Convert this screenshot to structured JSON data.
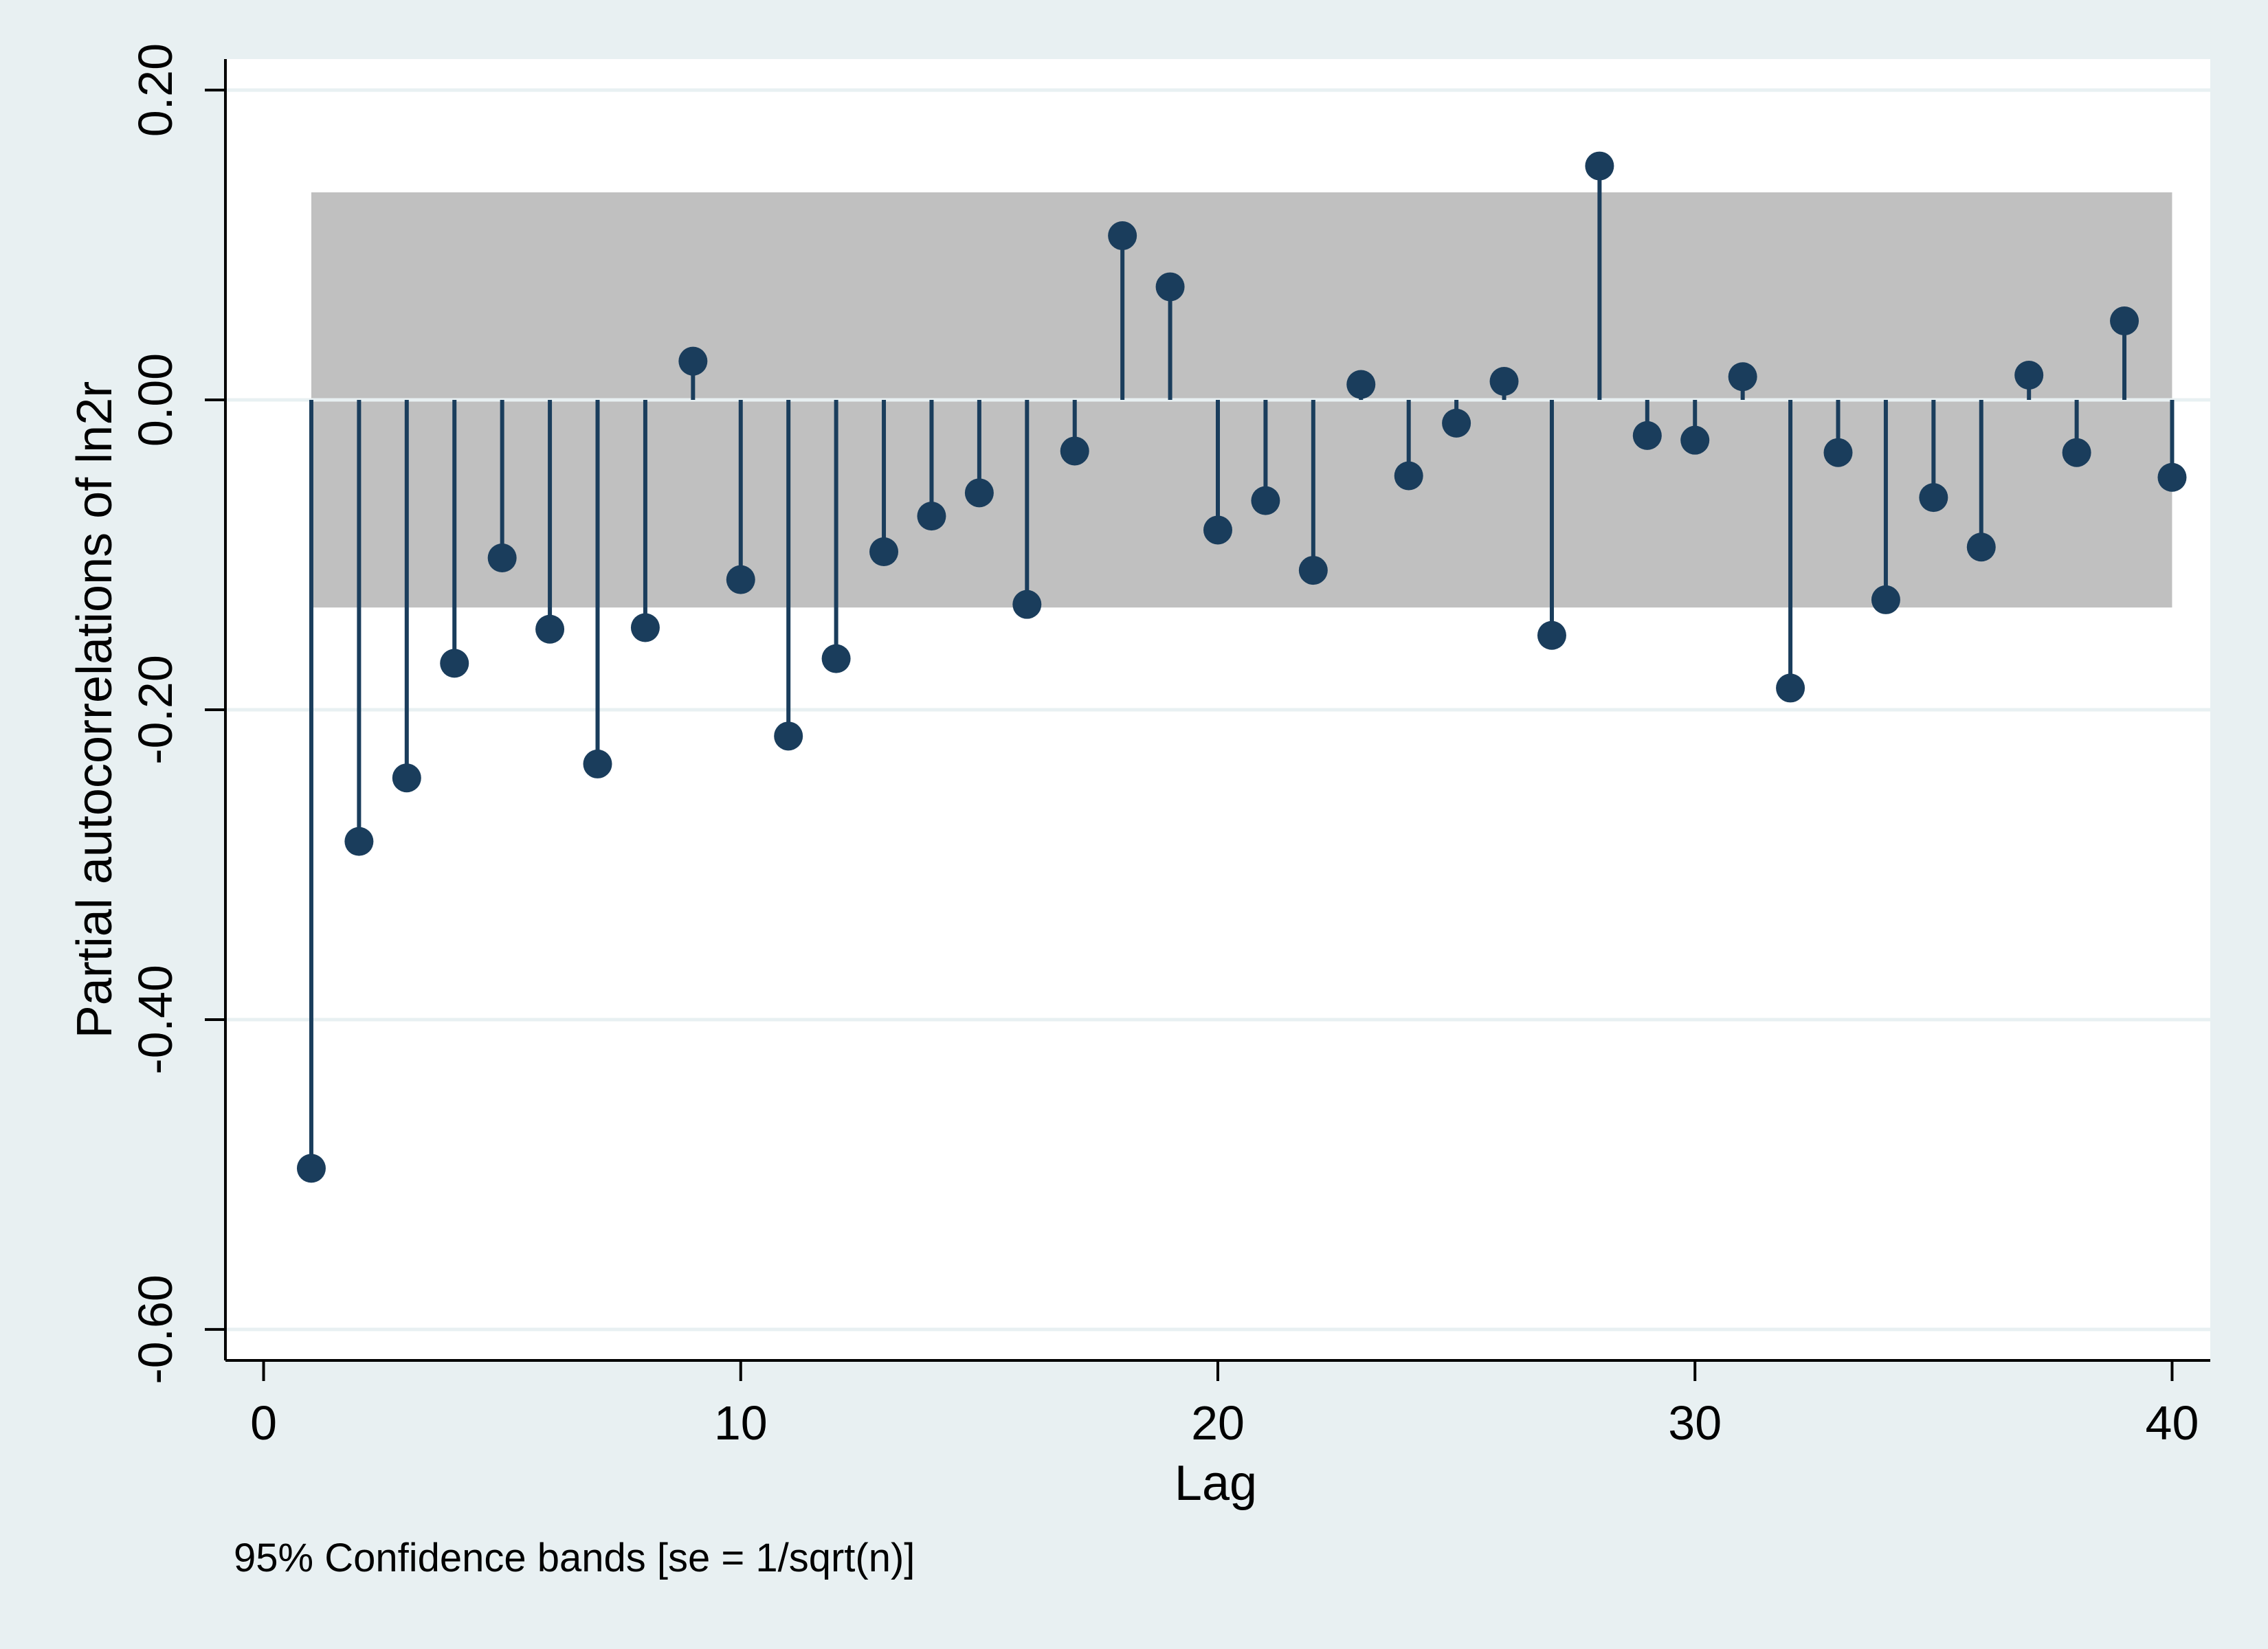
{
  "chart_data": {
    "type": "scatter",
    "style": "stem",
    "title": "",
    "xlabel": "Lag",
    "ylabel": "Partial autocorrelations of ln2r",
    "note": "95% Confidence bands [se = 1/sqrt(n)]",
    "xlim": [
      -0.8,
      40.8
    ],
    "ylim": [
      -0.62,
      0.22
    ],
    "x_ticks": [
      0,
      10,
      20,
      30,
      40
    ],
    "x_tick_labels": [
      "0",
      "10",
      "20",
      "30",
      "40"
    ],
    "y_ticks": [
      0.2,
      0.0,
      -0.2,
      -0.4,
      -0.6
    ],
    "y_tick_labels": [
      "0.20",
      "0.00",
      "-0.20",
      "-0.40",
      "-0.60"
    ],
    "grid": true,
    "confidence_band": {
      "lower": -0.134,
      "upper": 0.134,
      "from_lag": 1,
      "to_lag": 40
    },
    "series": [
      {
        "x": [
          1,
          2,
          3,
          4,
          5,
          6,
          7,
          8,
          9,
          10,
          11,
          12,
          13,
          14,
          15,
          16,
          17,
          18,
          19,
          20,
          21,
          22,
          23,
          24,
          25,
          26,
          27,
          28,
          29,
          30,
          31,
          32,
          33,
          34,
          35,
          36,
          37,
          38,
          39,
          40
        ],
        "values": [
          -0.496,
          -0.285,
          -0.244,
          -0.17,
          -0.102,
          -0.148,
          -0.235,
          -0.147,
          0.025,
          -0.116,
          -0.217,
          -0.167,
          -0.098,
          -0.075,
          -0.06,
          -0.132,
          -0.033,
          0.106,
          0.073,
          -0.084,
          -0.065,
          -0.11,
          0.01,
          -0.049,
          -0.015,
          0.012,
          -0.152,
          0.151,
          -0.023,
          -0.026,
          0.015,
          -0.186,
          -0.034,
          -0.129,
          -0.063,
          -0.095,
          0.016,
          -0.034,
          0.051,
          -0.05
        ]
      }
    ],
    "colors": {
      "background": "#e8f0f2",
      "plot_background": "#ffffff",
      "band": "#c0c0c0",
      "gridline": "#e8f0f2",
      "marker": "#1a3d5c"
    }
  }
}
